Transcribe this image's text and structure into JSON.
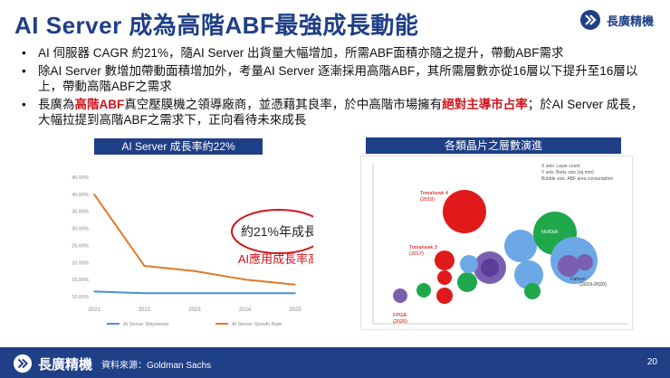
{
  "header": {
    "title": "AI Server 成為高階ABF最強成長動能",
    "logo_text": "長廣精機"
  },
  "bullets": [
    {
      "text": "AI 伺服器 CAGR 約21%，隨AI Server 出貨量大幅增加，所需ABF面積亦隨之提升，帶動ABF需求"
    },
    {
      "text": "除AI Server 數增加帶動面積增加外，考量AI Server 逐漸採用高階ABF，其所需層數亦從16層以下提升至16層以上，帶動高階ABF之需求"
    },
    {
      "pre": "長廣為",
      "hl1": "高階ABF",
      "mid": "真空壓膜機之領導廠商，並憑藉其良率，於中高階市場擁有",
      "hl2": "絕對主導市占率",
      "post": "；於AI Server 成長，大幅拉提到高階ABF之需求下，正向看待未來成長"
    }
  ],
  "left_panel": {
    "header": "AI Server 成長率約22%",
    "annotation_circle": "約21%年成長",
    "annotation_red": "AI應用成長率高",
    "legend": [
      "AI Server Shipments",
      "AI Server Growth Rate"
    ]
  },
  "right_panel": {
    "header": "各類晶片之層數演進",
    "axis_notes": [
      "X axis: Layer count",
      "Y axis: Body size (sq mm)",
      "Bubble size: ABF area consumption"
    ],
    "bubbles": [
      {
        "label": "Tomahawk 4",
        "sub": "(2019)",
        "color": "#e01a1a"
      },
      {
        "label": "Tomahawk 3",
        "sub": "(2017)",
        "color": "#e01a1a"
      },
      {
        "label": "FPGA",
        "sub": "(2020)",
        "color": "#e01a1a"
      },
      {
        "label": "Server",
        "sub": "",
        "color": "#1fa84b"
      },
      {
        "label": "NVIDIA",
        "sub": "",
        "color": "#1fa84b"
      },
      {
        "label": "Turin",
        "sub": "",
        "color": "#7a5fb0"
      },
      {
        "label": "Falcon",
        "sub": "(2019-2020)",
        "color": "#7a5fb0"
      }
    ]
  },
  "chart_data": {
    "type": "line",
    "title": "AI Server 成長率約22%",
    "x": [
      "2021",
      "2022",
      "2023",
      "2024",
      "2025"
    ],
    "yticks": [
      "10.00%",
      "15.00%",
      "20.00%",
      "25.00%",
      "30.00%",
      "35.00%",
      "40.00%",
      "45.00%"
    ],
    "ylim": [
      10,
      45
    ],
    "series": [
      {
        "name": "AI Server Shipments",
        "values": [
          11.5,
          11.0,
          11.0,
          11.0,
          11.0
        ],
        "color": "#4a8fd8"
      },
      {
        "name": "AI Server Growth Rate",
        "values": [
          40.0,
          19.0,
          17.5,
          15.0,
          13.5
        ],
        "color": "#e07a2a"
      }
    ],
    "grid": false
  },
  "footer": {
    "source": "資料來源：Goldman Sachs",
    "page": "20",
    "logo_text": "長廣精機"
  },
  "colors": {
    "brand": "#1f3f86",
    "accent": "#d0141b"
  }
}
